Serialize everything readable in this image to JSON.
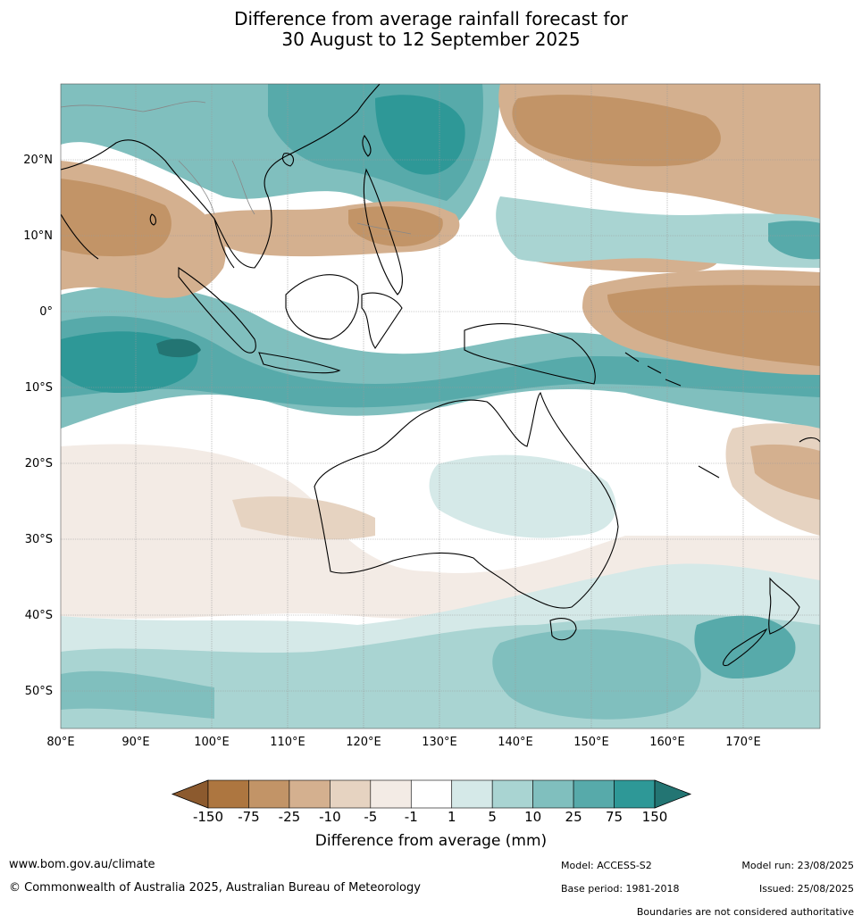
{
  "title": {
    "line1": "Difference from average rainfall forecast for",
    "line2": "30 August to 12 September 2025"
  },
  "map": {
    "lon_labels": [
      "80°E",
      "90°E",
      "100°E",
      "110°E",
      "120°E",
      "130°E",
      "140°E",
      "150°E",
      "160°E",
      "170°E"
    ],
    "lat_labels": [
      "20°N",
      "10°N",
      "0°",
      "10°S",
      "20°S",
      "30°S",
      "40°S",
      "50°S"
    ],
    "extent": {
      "lon_min": 80,
      "lon_max": 180,
      "lat_min": -55,
      "lat_max": 30
    }
  },
  "colorbar": {
    "ticks": [
      "-150",
      "-75",
      "-25",
      "-10",
      "-5",
      "-1",
      "1",
      "5",
      "10",
      "25",
      "75",
      "150"
    ],
    "colors": [
      "#8c5a2e",
      "#ad7640",
      "#c29467",
      "#d4b08f",
      "#e6d3c1",
      "#f3ebe5",
      "#ffffff",
      "#d5e9e8",
      "#a9d4d2",
      "#80bfbe",
      "#57aaaa",
      "#2e9897",
      "#237573"
    ],
    "title": "Difference from average (mm)"
  },
  "footer": {
    "url": "www.bom.gov.au/climate",
    "copyright": "© Commonwealth of Australia 2025, Australian Bureau of Meteorology",
    "model": "Model: ACCESS-S2",
    "base_period": "Base period: 1981-2018",
    "model_run": "Model run: 23/08/2025",
    "issued": "Issued: 25/08/2025",
    "disclaimer": "Boundaries are not considered authoritative"
  }
}
